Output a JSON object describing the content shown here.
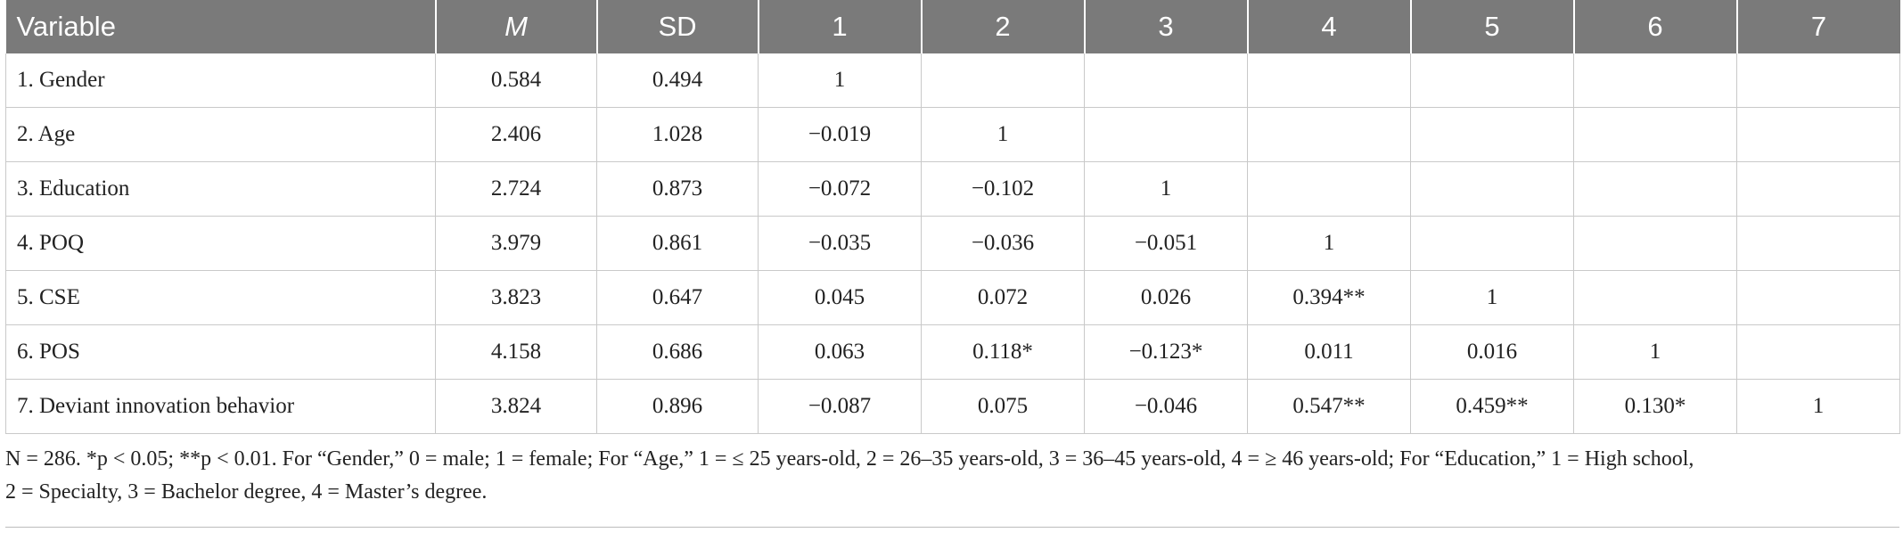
{
  "table": {
    "headers": [
      "Variable",
      "M",
      "SD",
      "1",
      "2",
      "3",
      "4",
      "5",
      "6",
      "7"
    ],
    "rows": [
      [
        "1. Gender",
        "0.584",
        "0.494",
        "1",
        "",
        "",
        "",
        "",
        "",
        ""
      ],
      [
        "2. Age",
        "2.406",
        "1.028",
        "−0.019",
        "1",
        "",
        "",
        "",
        "",
        ""
      ],
      [
        "3. Education",
        "2.724",
        "0.873",
        "−0.072",
        "−0.102",
        "1",
        "",
        "",
        "",
        ""
      ],
      [
        "4. POQ",
        "3.979",
        "0.861",
        "−0.035",
        "−0.036",
        "−0.051",
        "1",
        "",
        "",
        ""
      ],
      [
        "5. CSE",
        "3.823",
        "0.647",
        "0.045",
        "0.072",
        "0.026",
        "0.394**",
        "1",
        "",
        ""
      ],
      [
        "6. POS",
        "4.158",
        "0.686",
        "0.063",
        "0.118*",
        "−0.123*",
        "0.011",
        "0.016",
        "1",
        ""
      ],
      [
        "7. Deviant innovation behavior",
        "3.824",
        "0.896",
        "−0.087",
        "0.075",
        "−0.046",
        "0.547**",
        "0.459**",
        "0.130*",
        "1"
      ]
    ]
  },
  "note": {
    "line1": "N = 286. *p < 0.05; **p < 0.01. For “Gender,” 0 = male; 1 = female; For “Age,” 1 = ≤ 25 years-old, 2 = 26–35 years-old, 3 = 36–45 years-old, 4 = ≥ 46 years-old; For “Education,” 1 = High school,",
    "line2": "2 = Specialty, 3 = Bachelor degree, 4 = Master’s degree."
  }
}
